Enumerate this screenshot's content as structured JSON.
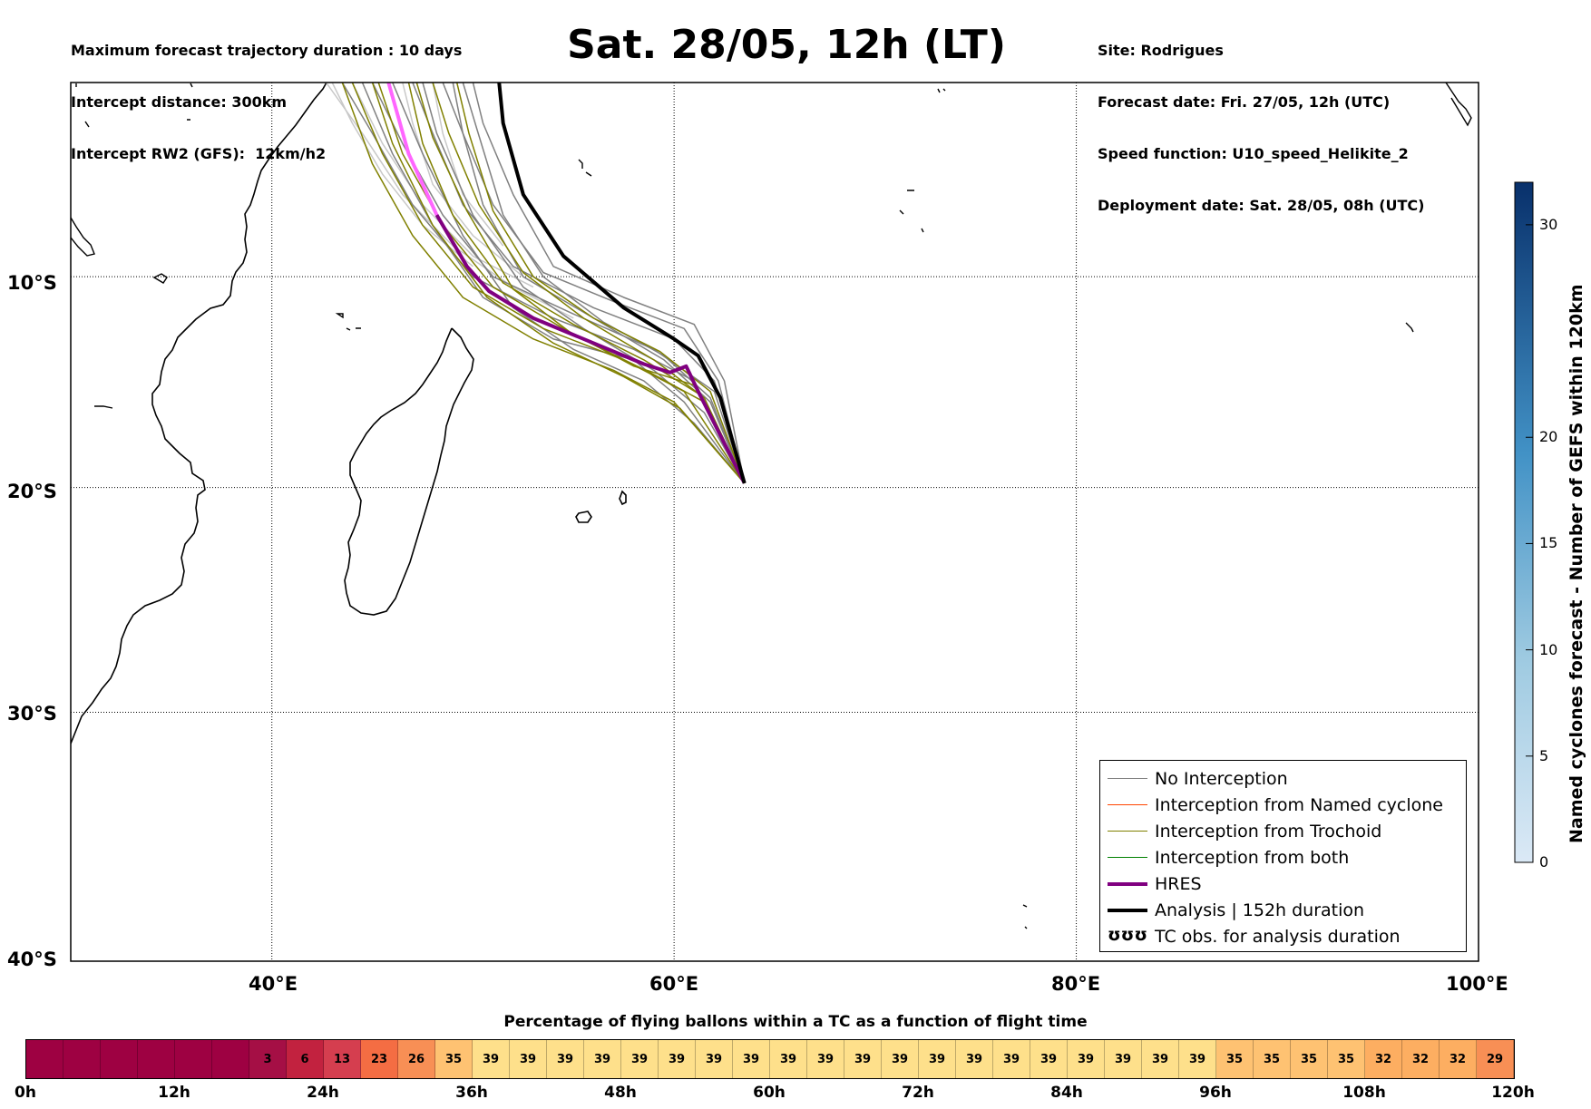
{
  "header_left": [
    "Maximum forecast trajectory duration : 10 days",
    "Intercept distance: 300km",
    "Intercept RW2 (GFS):  12km/h2"
  ],
  "header_right": [
    "Site: Rodrigues",
    "Forecast date: Fri. 27/05, 12h (UTC)",
    "Speed function: U10_speed_Helikite_2",
    "Deployment date: Sat. 28/05, 08h (UTC)"
  ],
  "title": "Sat. 28/05, 12h (LT)",
  "map": {
    "lon_ticks": [
      "40°E",
      "60°E",
      "80°E",
      "100°E"
    ],
    "lat_ticks": [
      "10°S",
      "20°S",
      "30°S",
      "40°S"
    ],
    "extent": {
      "lon": [
        30,
        100
      ],
      "lat": [
        -40,
        -0.5
      ]
    },
    "grid": "dotted"
  },
  "legend": {
    "items": [
      {
        "label": "No Interception",
        "color": "#808080"
      },
      {
        "label": "Interception from Named cyclone",
        "color": "#ff4500"
      },
      {
        "label": "Interception from Trochoid",
        "color": "#808000"
      },
      {
        "label": "Interception from both",
        "color": "#008000"
      },
      {
        "label": "HRES",
        "color": "#800080"
      },
      {
        "label": "Analysis | 152h duration",
        "color": "#000000"
      },
      {
        "label": "TC obs. for analysis duration",
        "color": "#000000",
        "symbol": "ʊʊʊ"
      }
    ]
  },
  "colorbar": {
    "title": "Named cyclones forecast - Number of GEFS within 120km",
    "ticks": [
      "0",
      "5",
      "10",
      "15",
      "20",
      "30"
    ],
    "tick_values": [
      0,
      5,
      10,
      15,
      20,
      30
    ],
    "max": 32
  },
  "bottom": {
    "title": "Percentage of flying ballons within a TC as a function of flight time",
    "time_ticks": [
      "0h",
      "12h",
      "24h",
      "36h",
      "48h",
      "60h",
      "72h",
      "84h",
      "96h",
      "108h",
      "120h"
    ],
    "values": [
      "",
      "",
      "",
      "",
      "",
      "",
      "3",
      "6",
      "13",
      "23",
      "26",
      "35",
      "39",
      "39",
      "39",
      "39",
      "39",
      "39",
      "39",
      "39",
      "39",
      "39",
      "39",
      "39",
      "39",
      "39",
      "39",
      "39",
      "39",
      "39",
      "39",
      "39",
      "35",
      "35",
      "35",
      "35",
      "32",
      "32",
      "32",
      "29"
    ],
    "percent_values": [
      0,
      0,
      0,
      0,
      0,
      0,
      3,
      6,
      13,
      23,
      26,
      35,
      39,
      39,
      39,
      39,
      39,
      39,
      39,
      39,
      39,
      39,
      39,
      39,
      39,
      39,
      39,
      39,
      39,
      39,
      39,
      39,
      35,
      35,
      35,
      35,
      32,
      32,
      32,
      29
    ]
  },
  "tracks": {
    "analysis": {
      "lon": [
        51.3,
        51.5,
        52.5,
        54.5,
        57.5,
        60,
        61.2,
        62.3,
        63.5
      ],
      "lat": [
        -0.5,
        -2.5,
        -6,
        -9,
        -11.5,
        -13,
        -13.8,
        -15.8,
        -19.8
      ]
    },
    "hres": {
      "lon": [
        45.8,
        46.8,
        48.2,
        49.7,
        50.8,
        53,
        56,
        58.5,
        59.8,
        60.6,
        61.2,
        63.5
      ],
      "lat": [
        -0.5,
        -4,
        -7,
        -9.5,
        -10.7,
        -12,
        -13.2,
        -14.2,
        -14.6,
        -14.3,
        -15.5,
        -19.8
      ]
    },
    "no_interception": [
      {
        "lon": [
          43.5,
          45,
          47,
          50,
          54,
          58,
          61,
          63.5
        ],
        "lat": [
          -0.5,
          -3,
          -6.5,
          -10,
          -12,
          -13.5,
          -15,
          -19.8
        ]
      },
      {
        "lon": [
          45,
          46.5,
          48.5,
          51,
          55,
          59,
          62,
          63.5
        ],
        "lat": [
          -0.5,
          -3.5,
          -7,
          -10,
          -11.8,
          -13.5,
          -15.5,
          -19.8
        ]
      },
      {
        "lon": [
          47,
          48,
          49.5,
          52,
          56,
          60,
          62,
          63.5
        ],
        "lat": [
          -0.5,
          -3,
          -6.5,
          -9.5,
          -11.5,
          -13,
          -15,
          -19.8
        ]
      },
      {
        "lon": [
          48.5,
          49.5,
          51,
          53.5,
          57,
          60.5,
          62.2,
          63.5
        ],
        "lat": [
          -0.5,
          -3,
          -6.5,
          -9.8,
          -11.2,
          -12.5,
          -15,
          -19.8
        ]
      },
      {
        "lon": [
          50,
          50.5,
          52,
          54,
          57.5,
          61,
          62.5,
          63.5
        ],
        "lat": [
          -0.5,
          -2.5,
          -6,
          -9.5,
          -11,
          -12.3,
          -15,
          -19.8
        ]
      },
      {
        "lon": [
          49,
          49.5,
          50.5,
          52.5,
          56,
          59.5,
          61.8,
          63.5
        ],
        "lat": [
          -0.5,
          -3,
          -6.5,
          -10,
          -12,
          -14,
          -16,
          -19.8
        ]
      },
      {
        "lon": [
          44.5,
          46,
          48,
          50.5,
          54,
          58,
          60.5,
          63.5
        ],
        "lat": [
          -0.5,
          -4,
          -7.5,
          -11,
          -13,
          -14,
          -16,
          -19.8
        ]
      },
      {
        "lon": [
          46,
          47.5,
          49.5,
          52,
          55,
          58.5,
          61,
          63.5
        ],
        "lat": [
          -0.5,
          -4,
          -8,
          -11.5,
          -13.5,
          -15,
          -17,
          -19.8
        ]
      },
      {
        "lon": [
          47.5,
          48.2,
          50,
          52.5,
          55.5,
          59,
          61.5,
          63.5
        ],
        "lat": [
          -0.5,
          -3,
          -7,
          -10.5,
          -12.5,
          -14.5,
          -16.5,
          -19.8
        ]
      },
      {
        "lon": [
          49.5,
          50.2,
          51.5,
          53.5,
          56.5,
          59.5,
          61.8,
          63.5
        ],
        "lat": [
          -0.5,
          -2.8,
          -7,
          -10,
          -12.2,
          -13.8,
          -15.8,
          -19.8
        ]
      }
    ],
    "light_grey": [
      {
        "lon": [
          42.7,
          44.5,
          46.5,
          49,
          52,
          55
        ],
        "lat": [
          -0.5,
          -3,
          -6,
          -8.5,
          -10.5,
          -12
        ]
      },
      {
        "lon": [
          44,
          45.5,
          47.5,
          50,
          53
        ],
        "lat": [
          -0.5,
          -3.5,
          -6.5,
          -9,
          -10.5
        ]
      },
      {
        "lon": [
          46.5,
          47,
          48,
          50,
          52.5
        ],
        "lat": [
          -0.5,
          -2.5,
          -5.5,
          -8,
          -10
        ]
      },
      {
        "lon": [
          48,
          48.5,
          49.5,
          51.5
        ],
        "lat": [
          -0.5,
          -3,
          -6,
          -8.5
        ]
      },
      {
        "lon": [
          43,
          44,
          45.5,
          47.5,
          50
        ],
        "lat": [
          -0.5,
          -2.5,
          -5,
          -7.5,
          -9.5
        ]
      }
    ],
    "trochoid": [
      {
        "lon": [
          44,
          45.5,
          47.5,
          50,
          53.5,
          57.5,
          60.5,
          63.5
        ],
        "lat": [
          -0.5,
          -4,
          -7.5,
          -10.5,
          -12.5,
          -14,
          -15.5,
          -19.8
        ]
      },
      {
        "lon": [
          45.3,
          46.5,
          48.5,
          51,
          54.5,
          58,
          61,
          63.5
        ],
        "lat": [
          -0.5,
          -4,
          -7.5,
          -10.5,
          -12.5,
          -14.3,
          -15.2,
          -19.8
        ]
      },
      {
        "lon": [
          46.8,
          47.5,
          49,
          51.5,
          55,
          58.5,
          61.2,
          63.5
        ],
        "lat": [
          -0.5,
          -3.5,
          -7,
          -10.3,
          -12.3,
          -14,
          -15.6,
          -19.8
        ]
      },
      {
        "lon": [
          48,
          48.8,
          50.3,
          52.5,
          55.5,
          59,
          61.5,
          63.5
        ],
        "lat": [
          -0.5,
          -3,
          -6.5,
          -9.8,
          -12,
          -14,
          -15.8,
          -19.8
        ]
      },
      {
        "lon": [
          49.2,
          49.8,
          51,
          53,
          56,
          59.3,
          61.8,
          63.5
        ],
        "lat": [
          -0.5,
          -3,
          -6.8,
          -10,
          -12,
          -13.6,
          -15.5,
          -19.8
        ]
      },
      {
        "lon": [
          43.5,
          45,
          47,
          49.5,
          53,
          57,
          60,
          63.5
        ],
        "lat": [
          -0.5,
          -4.5,
          -8,
          -11,
          -13,
          -14.5,
          -16,
          -19.8
        ]
      },
      {
        "lon": [
          45,
          46,
          48,
          50.7,
          54,
          57.5,
          60.3,
          63.5
        ],
        "lat": [
          -0.5,
          -3.5,
          -7.5,
          -11,
          -13.2,
          -14.8,
          -16.3,
          -19.8
        ]
      },
      {
        "lon": [
          47.2,
          48,
          49.7,
          52,
          55,
          58.8,
          61.5,
          63.5
        ],
        "lat": [
          -0.5,
          -3.2,
          -6.8,
          -10.6,
          -12.8,
          -14.6,
          -16,
          -19.8
        ]
      }
    ]
  }
}
